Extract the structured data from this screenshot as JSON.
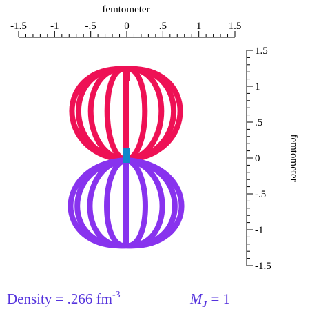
{
  "chart_data": {
    "type": "surface",
    "x_label": "femtometer",
    "y_label": "femtometer",
    "xlim": [
      -1.5,
      1.5
    ],
    "ylim": [
      -1.5,
      1.5
    ],
    "xticks": [
      -1.5,
      -1,
      {
        "value": -0.5,
        "label": "-.5"
      },
      0,
      {
        "value": 0.5,
        "label": ".5"
      },
      1,
      1.5
    ],
    "yticks": [
      -1.5,
      -1,
      {
        "value": -0.5,
        "label": "-.5"
      },
      0,
      {
        "value": 0.5,
        "label": ".5"
      },
      1,
      1.5
    ],
    "xminor": [
      -1.4,
      -1.3,
      -1.2,
      -1.1,
      -0.9,
      -0.8,
      -0.7,
      -0.6,
      -0.4,
      -0.3,
      -0.2,
      -0.1,
      0.1,
      0.2,
      0.3,
      0.4,
      0.6,
      0.7,
      0.8,
      0.9,
      1.1,
      1.2,
      1.3,
      1.4
    ],
    "yminor": [
      -1.4,
      -1.3,
      -1.2,
      -1.1,
      -0.9,
      -0.8,
      -0.7,
      -0.6,
      -0.4,
      -0.3,
      -0.2,
      -0.1,
      0.1,
      0.2,
      0.3,
      0.4,
      0.6,
      0.7,
      0.8,
      0.9,
      1.1,
      1.2,
      1.3,
      1.4
    ],
    "annotations": {
      "density": {
        "text": "Density = .266 fm",
        "superscript": "-3"
      },
      "mj": {
        "symbol": "M",
        "subscript": "J",
        "text": "= 1"
      }
    }
  }
}
